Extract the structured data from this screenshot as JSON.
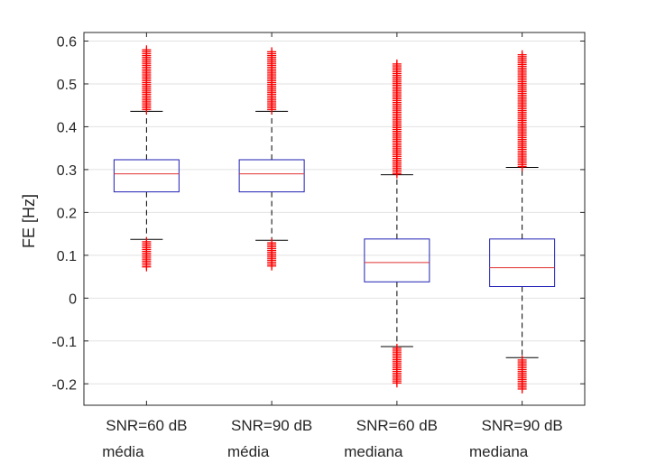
{
  "chart_data": {
    "type": "box",
    "ylabel": "FE [Hz]",
    "ylim": [
      -0.25,
      0.62
    ],
    "yticks": [
      -0.2,
      -0.1,
      0,
      0.1,
      0.2,
      0.3,
      0.4,
      0.5,
      0.6
    ],
    "ytick_labels": [
      "-0.2",
      "-0.1",
      "0",
      "0.1",
      "0.2",
      "0.3",
      "0.4",
      "0.5",
      "0.6"
    ],
    "grid": true,
    "categories": [
      {
        "line1": "SNR=60 dB",
        "line2": "média"
      },
      {
        "line1": "SNR=90 dB",
        "line2": "média"
      },
      {
        "line1": "SNR=60 dB",
        "line2": "mediana"
      },
      {
        "line1": "SNR=90 dB",
        "line2": "mediana"
      }
    ],
    "boxes": [
      {
        "q1": 0.248,
        "median": 0.29,
        "q3": 0.323,
        "whisker_low": 0.137,
        "whisker_high": 0.436,
        "outliers_high": [
          0.44,
          0.58
        ],
        "outliers_low": [
          0.073,
          0.135
        ]
      },
      {
        "q1": 0.248,
        "median": 0.29,
        "q3": 0.323,
        "whisker_low": 0.135,
        "whisker_high": 0.436,
        "outliers_high": [
          0.44,
          0.575
        ],
        "outliers_low": [
          0.075,
          0.13
        ]
      },
      {
        "q1": 0.038,
        "median": 0.083,
        "q3": 0.138,
        "whisker_low": -0.113,
        "whisker_high": 0.288,
        "outliers_high": [
          0.29,
          0.55
        ],
        "outliers_low": [
          -0.198,
          -0.116
        ]
      },
      {
        "q1": 0.027,
        "median": 0.071,
        "q3": 0.138,
        "whisker_low": -0.139,
        "whisker_high": 0.305,
        "outliers_high": [
          0.307,
          0.57
        ],
        "outliers_low": [
          -0.212,
          -0.142
        ]
      }
    ],
    "colors": {
      "box": "#1f1fb4",
      "median": "#e03030",
      "whisker": "#000000",
      "outlier": "#ff0000",
      "grid": "#e2e2e2",
      "axis": "#262626"
    }
  }
}
